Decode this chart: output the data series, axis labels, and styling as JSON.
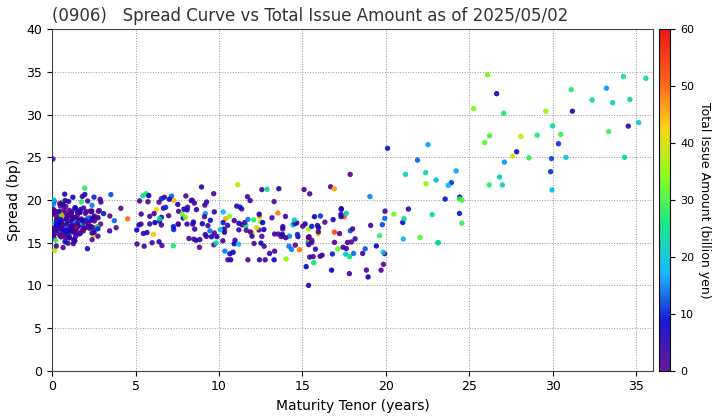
{
  "title": "(0906)   Spread Curve vs Total Issue Amount as of 2025/05/02",
  "xlabel": "Maturity Tenor (years)",
  "ylabel": "Spread (bp)",
  "colorbar_label": "Total Issue Amount (billion yen)",
  "xlim": [
    0,
    36
  ],
  "ylim": [
    0,
    40
  ],
  "clim": [
    0,
    60
  ],
  "xticks": [
    0,
    5,
    10,
    15,
    20,
    25,
    30,
    35
  ],
  "yticks": [
    0,
    5,
    10,
    15,
    20,
    25,
    30,
    35,
    40
  ],
  "background_color": "#ffffff",
  "title_fontsize": 12,
  "axis_fontsize": 10,
  "colorbar_fontsize": 9
}
